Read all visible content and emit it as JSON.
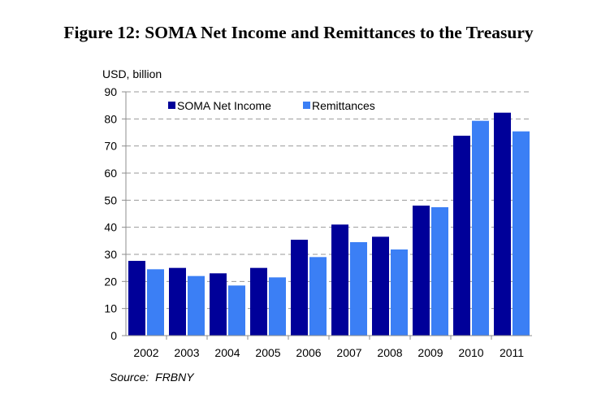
{
  "figure_title": "Figure 12:  SOMA Net Income and Remittances to the Treasury",
  "source": "Source:  FRBNY",
  "chart_data": {
    "type": "bar",
    "title": "Figure 12:  SOMA Net Income and Remittances to the Treasury",
    "ylabel": "USD, billion",
    "xlabel": "",
    "ylim": [
      0,
      90
    ],
    "yticks": [
      0,
      10,
      20,
      30,
      40,
      50,
      60,
      70,
      80,
      90
    ],
    "grid": true,
    "legend_position": "top-left",
    "categories": [
      "2002",
      "2003",
      "2004",
      "2005",
      "2006",
      "2007",
      "2008",
      "2009",
      "2010",
      "2011"
    ],
    "series": [
      {
        "name": "SOMA Net Income",
        "color": "#000099",
        "values": [
          27.6,
          25.0,
          23.0,
          25.0,
          35.4,
          41.0,
          36.5,
          48.0,
          73.8,
          82.3
        ]
      },
      {
        "name": "Remittances",
        "color": "#3b7ff5",
        "values": [
          24.5,
          22.0,
          18.5,
          21.5,
          29.0,
          34.5,
          31.8,
          47.4,
          79.3,
          75.4
        ]
      }
    ]
  }
}
